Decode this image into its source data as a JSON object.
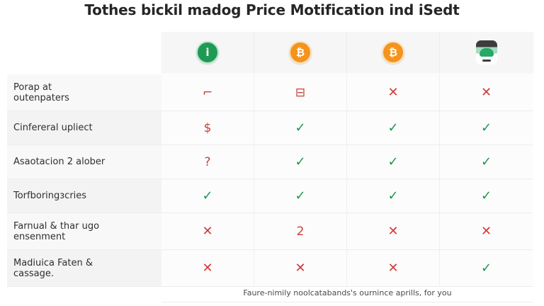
{
  "title": "Tothes bickil madog Price Motification ind iSedt",
  "columns": [
    {
      "name": "green-coin",
      "icon": "info-coin-icon",
      "glyph": "i",
      "color": "#1f9a55"
    },
    {
      "name": "bitcoin-1",
      "icon": "bitcoin-icon",
      "glyph": "₿",
      "color": "#f4931e"
    },
    {
      "name": "bitcoin-2",
      "icon": "bitcoin-icon",
      "glyph": "₿",
      "color": "#f4931e"
    },
    {
      "name": "app",
      "icon": "app-logo-icon",
      "glyph": "",
      "color": "#26a866"
    }
  ],
  "rows": [
    {
      "label": "Porap at\noutenpaters",
      "values": [
        {
          "type": "sym",
          "text": "⌐"
        },
        {
          "type": "sym",
          "text": "⊟"
        },
        {
          "type": "cross",
          "text": "✕"
        },
        {
          "type": "cross",
          "text": "✕"
        }
      ]
    },
    {
      "label": "Cinfereral upliect",
      "values": [
        {
          "type": "sym",
          "text": "$"
        },
        {
          "type": "check",
          "text": "✓"
        },
        {
          "type": "check",
          "text": "✓"
        },
        {
          "type": "check",
          "text": "✓"
        }
      ]
    },
    {
      "label": "Asaotacion 2 alober",
      "values": [
        {
          "type": "sym",
          "text": "?"
        },
        {
          "type": "check",
          "text": "✓"
        },
        {
          "type": "check",
          "text": "✓"
        },
        {
          "type": "check",
          "text": "✓"
        }
      ]
    },
    {
      "label": "Torfboringзcries",
      "values": [
        {
          "type": "check",
          "text": "✓"
        },
        {
          "type": "check",
          "text": "✓"
        },
        {
          "type": "check",
          "text": "✓"
        },
        {
          "type": "check",
          "text": "✓"
        }
      ]
    },
    {
      "label": "Farnual & thar ugo\nensenment",
      "values": [
        {
          "type": "cross",
          "text": "✕"
        },
        {
          "type": "sym",
          "text": "2"
        },
        {
          "type": "cross",
          "text": "✕"
        },
        {
          "type": "cross",
          "text": "✕"
        }
      ]
    },
    {
      "label": "Madiuica Faten &\ncassage.",
      "values": [
        {
          "type": "cross",
          "text": "✕"
        },
        {
          "type": "cross",
          "text": "✕"
        },
        {
          "type": "cross",
          "text": "✕"
        },
        {
          "type": "check",
          "text": "✓"
        }
      ]
    }
  ],
  "footer": "Faure-nimily noolcatabands's ournince aprills, for you",
  "colors": {
    "check": "#1e9450",
    "cross": "#d23a3a",
    "bitcoin": "#f4931e",
    "green": "#1f9a55"
  }
}
